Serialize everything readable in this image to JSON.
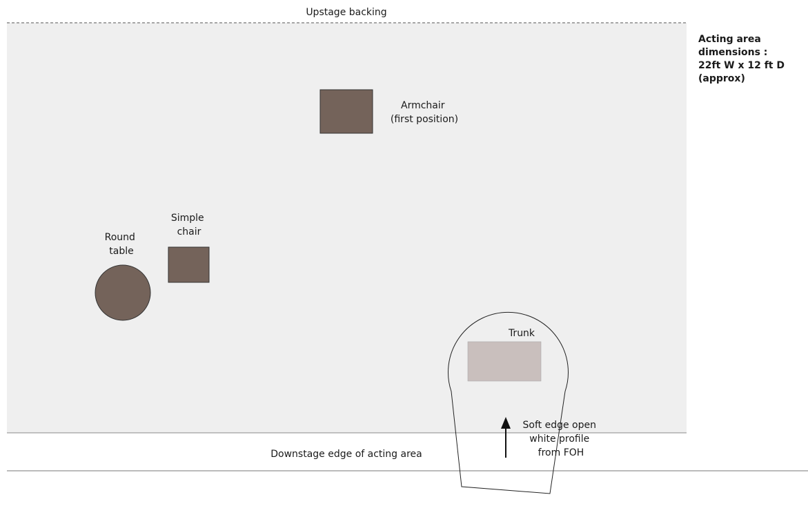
{
  "stage": {
    "upstage_label": "Upstage backing",
    "downstage_label": "Downstage edge of acting area",
    "colors": {
      "floor": "#efefef",
      "prop": "#74635a",
      "trunk": "#c9bfbd",
      "line": "#111111"
    }
  },
  "props": {
    "armchair": {
      "label_lines": [
        "Armchair",
        "(first position)"
      ]
    },
    "simple_chair": {
      "label_lines": [
        "Simple",
        "chair"
      ]
    },
    "round_table": {
      "label_lines": [
        "Round",
        "table"
      ]
    },
    "trunk": {
      "label": "Trunk"
    }
  },
  "lighting": {
    "note_lines": [
      "Soft edge open",
      "white profile",
      "from FOH"
    ],
    "arrow_icon": "up-arrow-icon"
  },
  "dimensions": {
    "lines": [
      "Acting area",
      "dimensions :",
      "22ft W x 12 ft D",
      "(approx)"
    ]
  }
}
